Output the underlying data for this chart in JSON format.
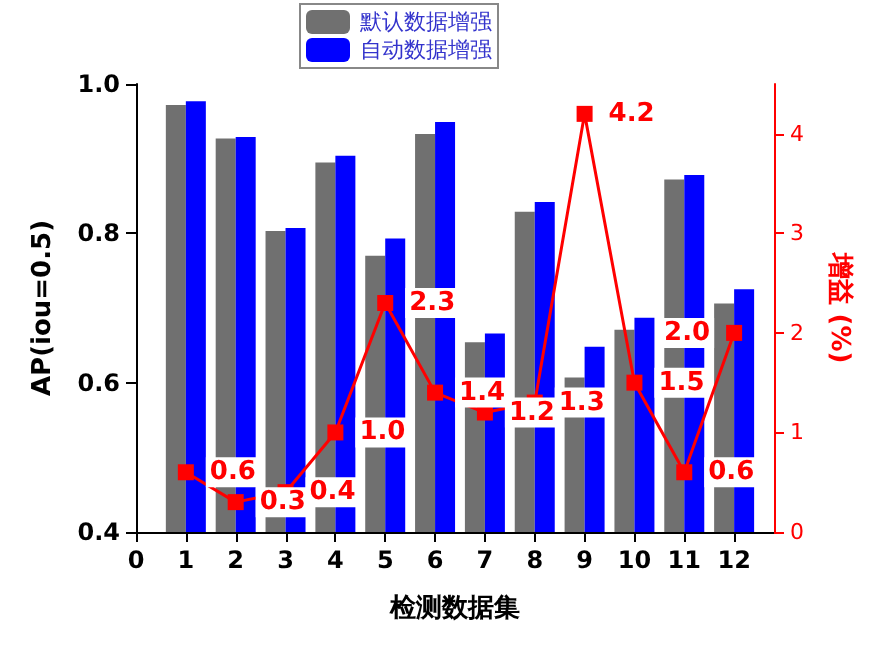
{
  "chart_data": {
    "type": "bar",
    "xlabel": "检测数据集",
    "ylabel": "AP(iou=0.5)",
    "y2label": "增益 (%)",
    "x": [
      1,
      2,
      3,
      4,
      5,
      6,
      7,
      8,
      9,
      10,
      11,
      12
    ],
    "xlim": [
      0,
      12.8
    ],
    "xticks": [
      0,
      1,
      2,
      3,
      4,
      5,
      6,
      7,
      8,
      9,
      10,
      11,
      12
    ],
    "ylim": [
      0.4,
      1.0
    ],
    "yticks": [
      0.4,
      0.6,
      0.8,
      {
        "value": 1.0,
        "label": "1.0"
      }
    ],
    "y2lim": [
      0,
      4.5
    ],
    "y2ticks": [
      0,
      1,
      2,
      3,
      4
    ],
    "legend": "top",
    "grid": false,
    "marker": "square",
    "line_style": "solid",
    "series": [
      {
        "name": "默认数据增强",
        "color": "#707070",
        "values": [
          0.972,
          0.927,
          0.803,
          0.895,
          0.77,
          0.933,
          0.654,
          0.829,
          0.607,
          0.671,
          0.872,
          0.706
        ]
      },
      {
        "name": "自动数据增强",
        "color": "#0000ff",
        "values": [
          0.977,
          0.929,
          0.807,
          0.904,
          0.793,
          0.949,
          0.666,
          0.842,
          0.648,
          0.687,
          0.878,
          0.725
        ]
      },
      {
        "type": "line",
        "axis": "y2",
        "color": "#ff0000",
        "values": [
          0.6,
          0.3,
          0.4,
          1.0,
          2.3,
          1.4,
          1.2,
          1.3,
          4.2,
          1.5,
          0.6,
          2.0
        ],
        "value_labels": [
          "0.6",
          "0.3",
          "0.4",
          "1.0",
          "2.3",
          "1.4",
          "1.2",
          "1.3",
          "4.2",
          "1.5",
          "0.6",
          "2.0"
        ]
      }
    ]
  }
}
